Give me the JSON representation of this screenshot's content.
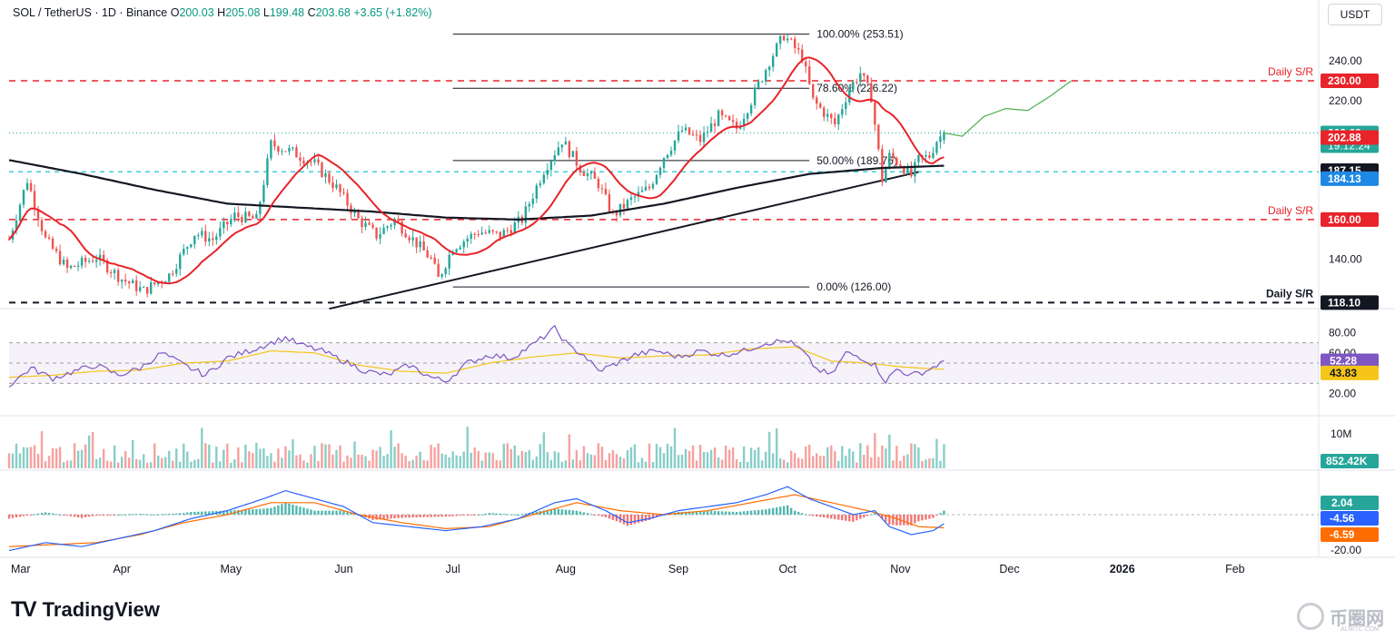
{
  "header": {
    "symbol": "SOL / TetherUS · 1D · Binance",
    "open_label": "O",
    "open": "200.03",
    "high_label": "H",
    "high": "205.08",
    "low_label": "L",
    "low": "199.48",
    "close_label": "C",
    "close": "203.68",
    "change": "+3.65 (+1.82%)"
  },
  "currency": "USDT",
  "logo_text": "TradingView",
  "watermark_text": "币圈网",
  "watermark_sub": "ALIBTC.COM",
  "colors": {
    "up": "#26a69a",
    "down": "#ef5350",
    "sma50": "#e8232a",
    "sma200": "#131722",
    "rsi": "#7e57c2",
    "rsi_ma": "#f5c518",
    "macd": "#2962ff",
    "signal": "#ff6d00",
    "cyan": "#00bcd4",
    "resistance": "#e8232a"
  },
  "chart_data": {
    "type": "candlestick",
    "x_axis_labels": [
      "Mar",
      "Apr",
      "May",
      "Jun",
      "Jul",
      "Aug",
      "Sep",
      "Oct",
      "Nov",
      "Dec",
      "2026",
      "Feb"
    ],
    "price_axis_ticks": [
      "240.00",
      "220.00",
      "140.00"
    ],
    "price_ylim": [
      116,
      257
    ],
    "fib_levels": [
      {
        "label": "100.00% (253.51)",
        "value": 253.51
      },
      {
        "label": "78.60% (226.22)",
        "value": 226.22
      },
      {
        "label": "50.00% (189.76)",
        "value": 189.76
      },
      {
        "label": "0.00% (126.00)",
        "value": 126.0
      }
    ],
    "support_resistance": [
      {
        "label": "Daily S/R",
        "value": 230.0,
        "tag": "230.00",
        "style": "red-dashed"
      },
      {
        "label": "Daily S/R",
        "value": 160.0,
        "tag": "160.00",
        "style": "red-dashed"
      },
      {
        "label": "Daily S/R",
        "value": 118.1,
        "tag": "118.10",
        "style": "black-dashed"
      }
    ],
    "cyan_level": {
      "value": 184.13,
      "tag": "184.13"
    },
    "last_price": {
      "value": 203.68,
      "tag": "203.68",
      "countdown": "19:12:24"
    },
    "sma50": {
      "value": 202.88,
      "tag": "202.88"
    },
    "sma200": {
      "value": 187.15,
      "tag": "187.15"
    },
    "close_series": [
      {
        "x": 0,
        "v": 150
      },
      {
        "x": 5,
        "v": 180
      },
      {
        "x": 10,
        "v": 150
      },
      {
        "x": 16,
        "v": 135
      },
      {
        "x": 24,
        "v": 141
      },
      {
        "x": 31,
        "v": 130
      },
      {
        "x": 37,
        "v": 124
      },
      {
        "x": 44,
        "v": 132
      },
      {
        "x": 51,
        "v": 153
      },
      {
        "x": 56,
        "v": 150
      },
      {
        "x": 62,
        "v": 162
      },
      {
        "x": 68,
        "v": 160
      },
      {
        "x": 72,
        "v": 198
      },
      {
        "x": 78,
        "v": 194
      },
      {
        "x": 84,
        "v": 188
      },
      {
        "x": 90,
        "v": 176
      },
      {
        "x": 96,
        "v": 160
      },
      {
        "x": 101,
        "v": 152
      },
      {
        "x": 106,
        "v": 160
      },
      {
        "x": 111,
        "v": 150
      },
      {
        "x": 116,
        "v": 140
      },
      {
        "x": 118,
        "v": 130
      },
      {
        "x": 122,
        "v": 146
      },
      {
        "x": 129,
        "v": 154
      },
      {
        "x": 135,
        "v": 152
      },
      {
        "x": 141,
        "v": 160
      },
      {
        "x": 147,
        "v": 185
      },
      {
        "x": 152,
        "v": 200
      },
      {
        "x": 157,
        "v": 186
      },
      {
        "x": 162,
        "v": 178
      },
      {
        "x": 166,
        "v": 162
      },
      {
        "x": 171,
        "v": 170
      },
      {
        "x": 176,
        "v": 176
      },
      {
        "x": 180,
        "v": 192
      },
      {
        "x": 185,
        "v": 205
      },
      {
        "x": 190,
        "v": 200
      },
      {
        "x": 195,
        "v": 212
      },
      {
        "x": 200,
        "v": 206
      },
      {
        "x": 204,
        "v": 220
      },
      {
        "x": 209,
        "v": 240
      },
      {
        "x": 213,
        "v": 253
      },
      {
        "x": 218,
        "v": 242
      },
      {
        "x": 221,
        "v": 220
      },
      {
        "x": 224,
        "v": 214
      },
      {
        "x": 227,
        "v": 208
      },
      {
        "x": 231,
        "v": 226
      },
      {
        "x": 234,
        "v": 234
      },
      {
        "x": 237,
        "v": 222
      },
      {
        "x": 240,
        "v": 180
      },
      {
        "x": 242,
        "v": 192
      },
      {
        "x": 245,
        "v": 188
      },
      {
        "x": 248,
        "v": 182
      },
      {
        "x": 250,
        "v": 190
      },
      {
        "x": 253,
        "v": 192
      },
      {
        "x": 255,
        "v": 200
      },
      {
        "x": 257,
        "v": 203.68
      }
    ],
    "projection": [
      [
        262,
        202
      ],
      [
        268,
        212
      ],
      [
        274,
        216
      ],
      [
        280,
        215
      ],
      [
        286,
        222
      ],
      [
        292,
        230
      ]
    ],
    "x_index": {
      "start": 0,
      "end": 360,
      "last_bar": 257
    },
    "rsi": {
      "ticks": [
        "80.00",
        "60.00",
        "20.00"
      ],
      "band": [
        30,
        70
      ],
      "value": 52.28,
      "value_tag": "52.28",
      "ma_value": 43.83,
      "ma_tag": "43.83",
      "series": [
        [
          0,
          28
        ],
        [
          6,
          45
        ],
        [
          12,
          35
        ],
        [
          18,
          42
        ],
        [
          24,
          48
        ],
        [
          30,
          38
        ],
        [
          36,
          45
        ],
        [
          42,
          60
        ],
        [
          48,
          48
        ],
        [
          54,
          38
        ],
        [
          60,
          55
        ],
        [
          66,
          62
        ],
        [
          72,
          70
        ],
        [
          76,
          75
        ],
        [
          80,
          68
        ],
        [
          86,
          62
        ],
        [
          92,
          52
        ],
        [
          98,
          42
        ],
        [
          104,
          38
        ],
        [
          110,
          48
        ],
        [
          116,
          36
        ],
        [
          120,
          32
        ],
        [
          126,
          50
        ],
        [
          132,
          58
        ],
        [
          138,
          55
        ],
        [
          144,
          68
        ],
        [
          150,
          84
        ],
        [
          154,
          66
        ],
        [
          158,
          58
        ],
        [
          162,
          42
        ],
        [
          166,
          48
        ],
        [
          172,
          58
        ],
        [
          178,
          62
        ],
        [
          184,
          56
        ],
        [
          190,
          62
        ],
        [
          196,
          58
        ],
        [
          202,
          62
        ],
        [
          208,
          70
        ],
        [
          214,
          72
        ],
        [
          218,
          62
        ],
        [
          222,
          44
        ],
        [
          226,
          38
        ],
        [
          230,
          60
        ],
        [
          234,
          56
        ],
        [
          238,
          48
        ],
        [
          241,
          32
        ],
        [
          244,
          44
        ],
        [
          248,
          38
        ],
        [
          252,
          42
        ],
        [
          255,
          48
        ],
        [
          257,
          52
        ]
      ],
      "ma_series": [
        [
          0,
          36
        ],
        [
          12,
          38
        ],
        [
          24,
          42
        ],
        [
          36,
          43
        ],
        [
          48,
          50
        ],
        [
          60,
          52
        ],
        [
          72,
          62
        ],
        [
          84,
          60
        ],
        [
          96,
          48
        ],
        [
          108,
          42
        ],
        [
          120,
          40
        ],
        [
          132,
          50
        ],
        [
          144,
          56
        ],
        [
          156,
          60
        ],
        [
          168,
          55
        ],
        [
          180,
          57
        ],
        [
          192,
          58
        ],
        [
          204,
          64
        ],
        [
          216,
          66
        ],
        [
          226,
          52
        ],
        [
          236,
          50
        ],
        [
          246,
          46
        ],
        [
          257,
          43.83
        ]
      ]
    },
    "volume": {
      "tick": "10M",
      "last_tag": "852.42K",
      "bars_hint": "daily volume bars, colored by candle direction"
    },
    "macd": {
      "ticks": [
        "-20.00"
      ],
      "hist_tag": "2.04",
      "macd_tag": "-4.56",
      "signal_tag": "-6.59",
      "macd_series": [
        [
          0,
          -18
        ],
        [
          10,
          -14
        ],
        [
          20,
          -16
        ],
        [
          30,
          -12
        ],
        [
          40,
          -8
        ],
        [
          50,
          -2
        ],
        [
          60,
          2
        ],
        [
          70,
          8
        ],
        [
          76,
          12
        ],
        [
          84,
          8
        ],
        [
          92,
          4
        ],
        [
          100,
          -4
        ],
        [
          110,
          -6
        ],
        [
          120,
          -8
        ],
        [
          130,
          -6
        ],
        [
          140,
          -2
        ],
        [
          150,
          6
        ],
        [
          156,
          8
        ],
        [
          164,
          2
        ],
        [
          170,
          -4
        ],
        [
          176,
          -2
        ],
        [
          184,
          2
        ],
        [
          192,
          4
        ],
        [
          200,
          6
        ],
        [
          208,
          10
        ],
        [
          214,
          14
        ],
        [
          220,
          8
        ],
        [
          226,
          4
        ],
        [
          232,
          0
        ],
        [
          238,
          2
        ],
        [
          242,
          -6
        ],
        [
          248,
          -10
        ],
        [
          254,
          -8
        ],
        [
          257,
          -4.56
        ]
      ],
      "signal_series": [
        [
          0,
          -16
        ],
        [
          12,
          -15
        ],
        [
          24,
          -14
        ],
        [
          36,
          -10
        ],
        [
          48,
          -4
        ],
        [
          60,
          0
        ],
        [
          72,
          6
        ],
        [
          84,
          6
        ],
        [
          96,
          0
        ],
        [
          108,
          -4
        ],
        [
          120,
          -7
        ],
        [
          132,
          -6
        ],
        [
          144,
          0
        ],
        [
          156,
          6
        ],
        [
          168,
          2
        ],
        [
          180,
          0
        ],
        [
          192,
          2
        ],
        [
          204,
          6
        ],
        [
          216,
          10
        ],
        [
          226,
          6
        ],
        [
          236,
          2
        ],
        [
          244,
          -2
        ],
        [
          250,
          -6
        ],
        [
          257,
          -6.59
        ]
      ]
    }
  }
}
